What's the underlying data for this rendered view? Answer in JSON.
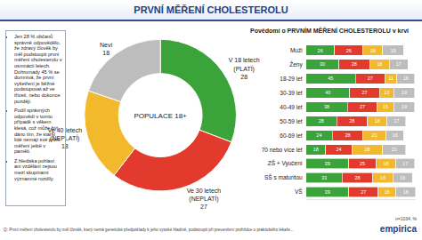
{
  "header": {
    "title": "PRVNÍ MĚŘENÍ CHOLESTEROLU"
  },
  "notes": [
    "Jen 28 % občanů správně odpovědělo, že zdravý člověk by měl podstoupit první měření cholesterolu v osmnácti letech. Dohromady 45 % se domnívá, že první vyšetření je běžné podstupovat až ve třiceti, nebo dokonce později.",
    "Podíl správných odpovědí v tomto případě s věkem klesá, což může být dáno tím, že starší lidé nemají své první měření ještě v paměti.",
    "Z hlediska pohlaví ani vzdělání nejsou mezi skupinami významné rozdíly."
  ],
  "chart_data": [
    {
      "type": "pie",
      "title": "POPULACE 18+",
      "categories": [
        "V 18 letech (PLATÍ)",
        "Ve 30 letech (NEPLATÍ)",
        "Ve 40 letech (NEPLATÍ)",
        "Neví"
      ],
      "values": [
        28,
        27,
        18,
        18
      ],
      "colors": [
        "#3aa33a",
        "#e23b2e",
        "#f2b92c",
        "#bdbdbd"
      ],
      "data_labels": true
    },
    {
      "type": "bar",
      "title": "Povědomí o PRVNÍM MĚŘENÍ CHOLESTEROLU v krvi",
      "orientation": "horizontal",
      "stacked": true,
      "data_labels": true,
      "tick_labels": "y",
      "categories": [
        "Muži",
        "Ženy",
        "18-29 let",
        "30-39 let",
        "40-49 let",
        "50-59 let",
        "60-69 let",
        "70 nebo více let",
        "ZŠ + Vyučení",
        "SŠ s maturitou",
        "VŠ"
      ],
      "series": [
        {
          "color": "#3aa33a",
          "values": [
            26,
            30,
            45,
            40,
            38,
            28,
            24,
            18,
            39,
            33,
            39
          ]
        },
        {
          "color": "#e23b2e",
          "values": [
            26,
            28,
            27,
            27,
            27,
            28,
            28,
            24,
            25,
            28,
            27
          ]
        },
        {
          "color": "#f2b92c",
          "values": [
            18,
            18,
            11,
            13,
            15,
            18,
            21,
            28,
            18,
            18,
            16
          ]
        },
        {
          "color": "#bdbdbd",
          "values": [
            19,
            17,
            16,
            19,
            19,
            17,
            16,
            21,
            17,
            18,
            18
          ]
        }
      ],
      "xlim": [
        0,
        100
      ]
    }
  ],
  "footer": {
    "question": "Q: První měření cholesterolu by měl člověk, který nemá genetické předpoklady k jeho vysoké hladině, podstoupit při preventivní prohlídce u praktického lékaře...",
    "sample": "n=1034, %",
    "logo": "empirica"
  }
}
